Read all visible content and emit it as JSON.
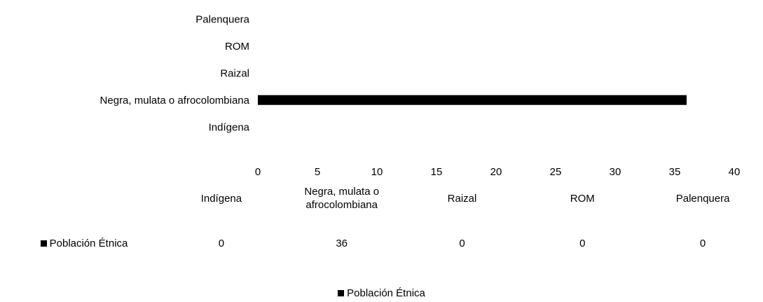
{
  "chart_data": {
    "type": "bar",
    "orientation": "horizontal",
    "categories": [
      "Indígena",
      "Negra, mulata o afrocolombiana",
      "Raizal",
      "ROM",
      "Palenquera"
    ],
    "series": [
      {
        "name": "Población Étnica",
        "values": [
          0,
          36,
          0,
          0,
          0
        ],
        "color": "#000000"
      }
    ],
    "xlim": [
      0,
      40
    ],
    "xticks": [
      0,
      5,
      10,
      15,
      20,
      25,
      30,
      35,
      40
    ],
    "grid": false,
    "legend_position": "bottom",
    "data_table": true
  }
}
